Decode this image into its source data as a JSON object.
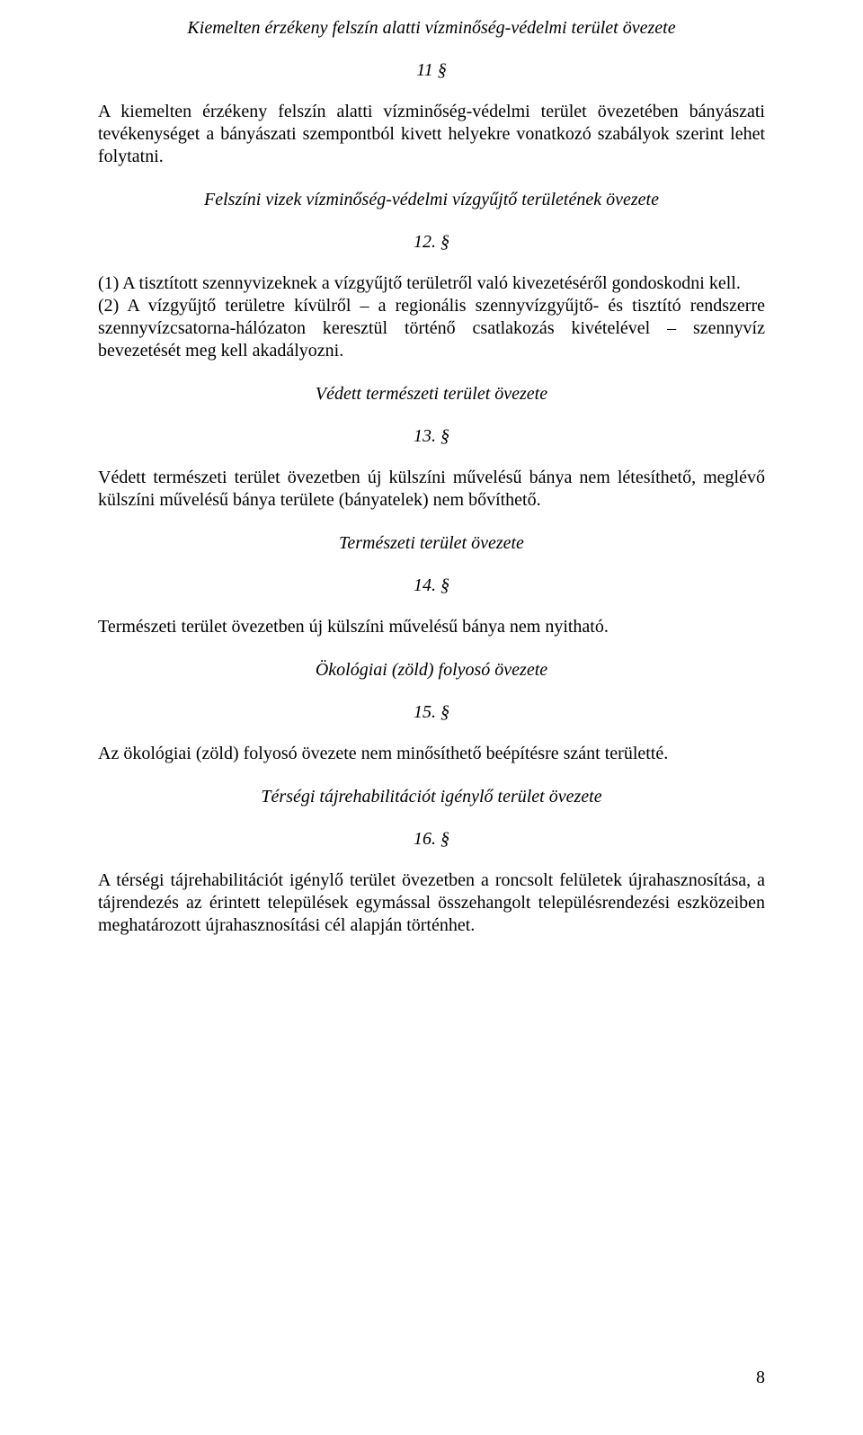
{
  "sections": {
    "s11": {
      "title": "Kiemelten érzékeny felszín alatti vízminőség-védelmi terület övezete",
      "clause": "11 §",
      "body": "A kiemelten érzékeny felszín alatti vízminőség-védelmi terület övezetében bányászati tevékenységet a bányászati szempontból kivett helyekre vonatkozó szabályok szerint lehet folytatni."
    },
    "s12": {
      "title": "Felszíni vizek vízminőség-védelmi vízgyűjtő területének övezete",
      "clause": "12. §",
      "p1": "(1) A tisztított szennyvizeknek a vízgyűjtő területről való kivezetéséről gondoskodni kell.",
      "p2": "(2) A vízgyűjtő területre kívülről – a regionális szennyvízgyűjtő- és tisztító rendszerre szennyvízcsatorna-hálózaton keresztül történő csatlakozás kivételével – szennyvíz bevezetését meg kell akadályozni."
    },
    "s13": {
      "title": "Védett természeti terület övezete",
      "clause": "13. §",
      "body": "Védett természeti terület övezetben új külszíni művelésű bánya nem létesíthető, meglévő külszíni művelésű bánya területe (bányatelek) nem bővíthető."
    },
    "s14": {
      "title": "Természeti terület övezete",
      "clause": "14. §",
      "body": "Természeti terület övezetben új külszíni művelésű bánya nem nyitható."
    },
    "s15": {
      "title": "Ökológiai (zöld) folyosó övezete",
      "clause": "15. §",
      "body": "Az ökológiai (zöld) folyosó övezete nem minősíthető beépítésre szánt területté."
    },
    "s16": {
      "title": "Térségi tájrehabilitációt igénylő terület övezete",
      "clause": "16. §",
      "body": "A térségi tájrehabilitációt igénylő terület övezetben a roncsolt felületek újrahasznosítása, a tájrendezés az érintett települések egymással összehangolt településrendezési eszközeiben meghatározott újrahasznosítási cél alapján történhet."
    }
  },
  "pageNumber": "8"
}
